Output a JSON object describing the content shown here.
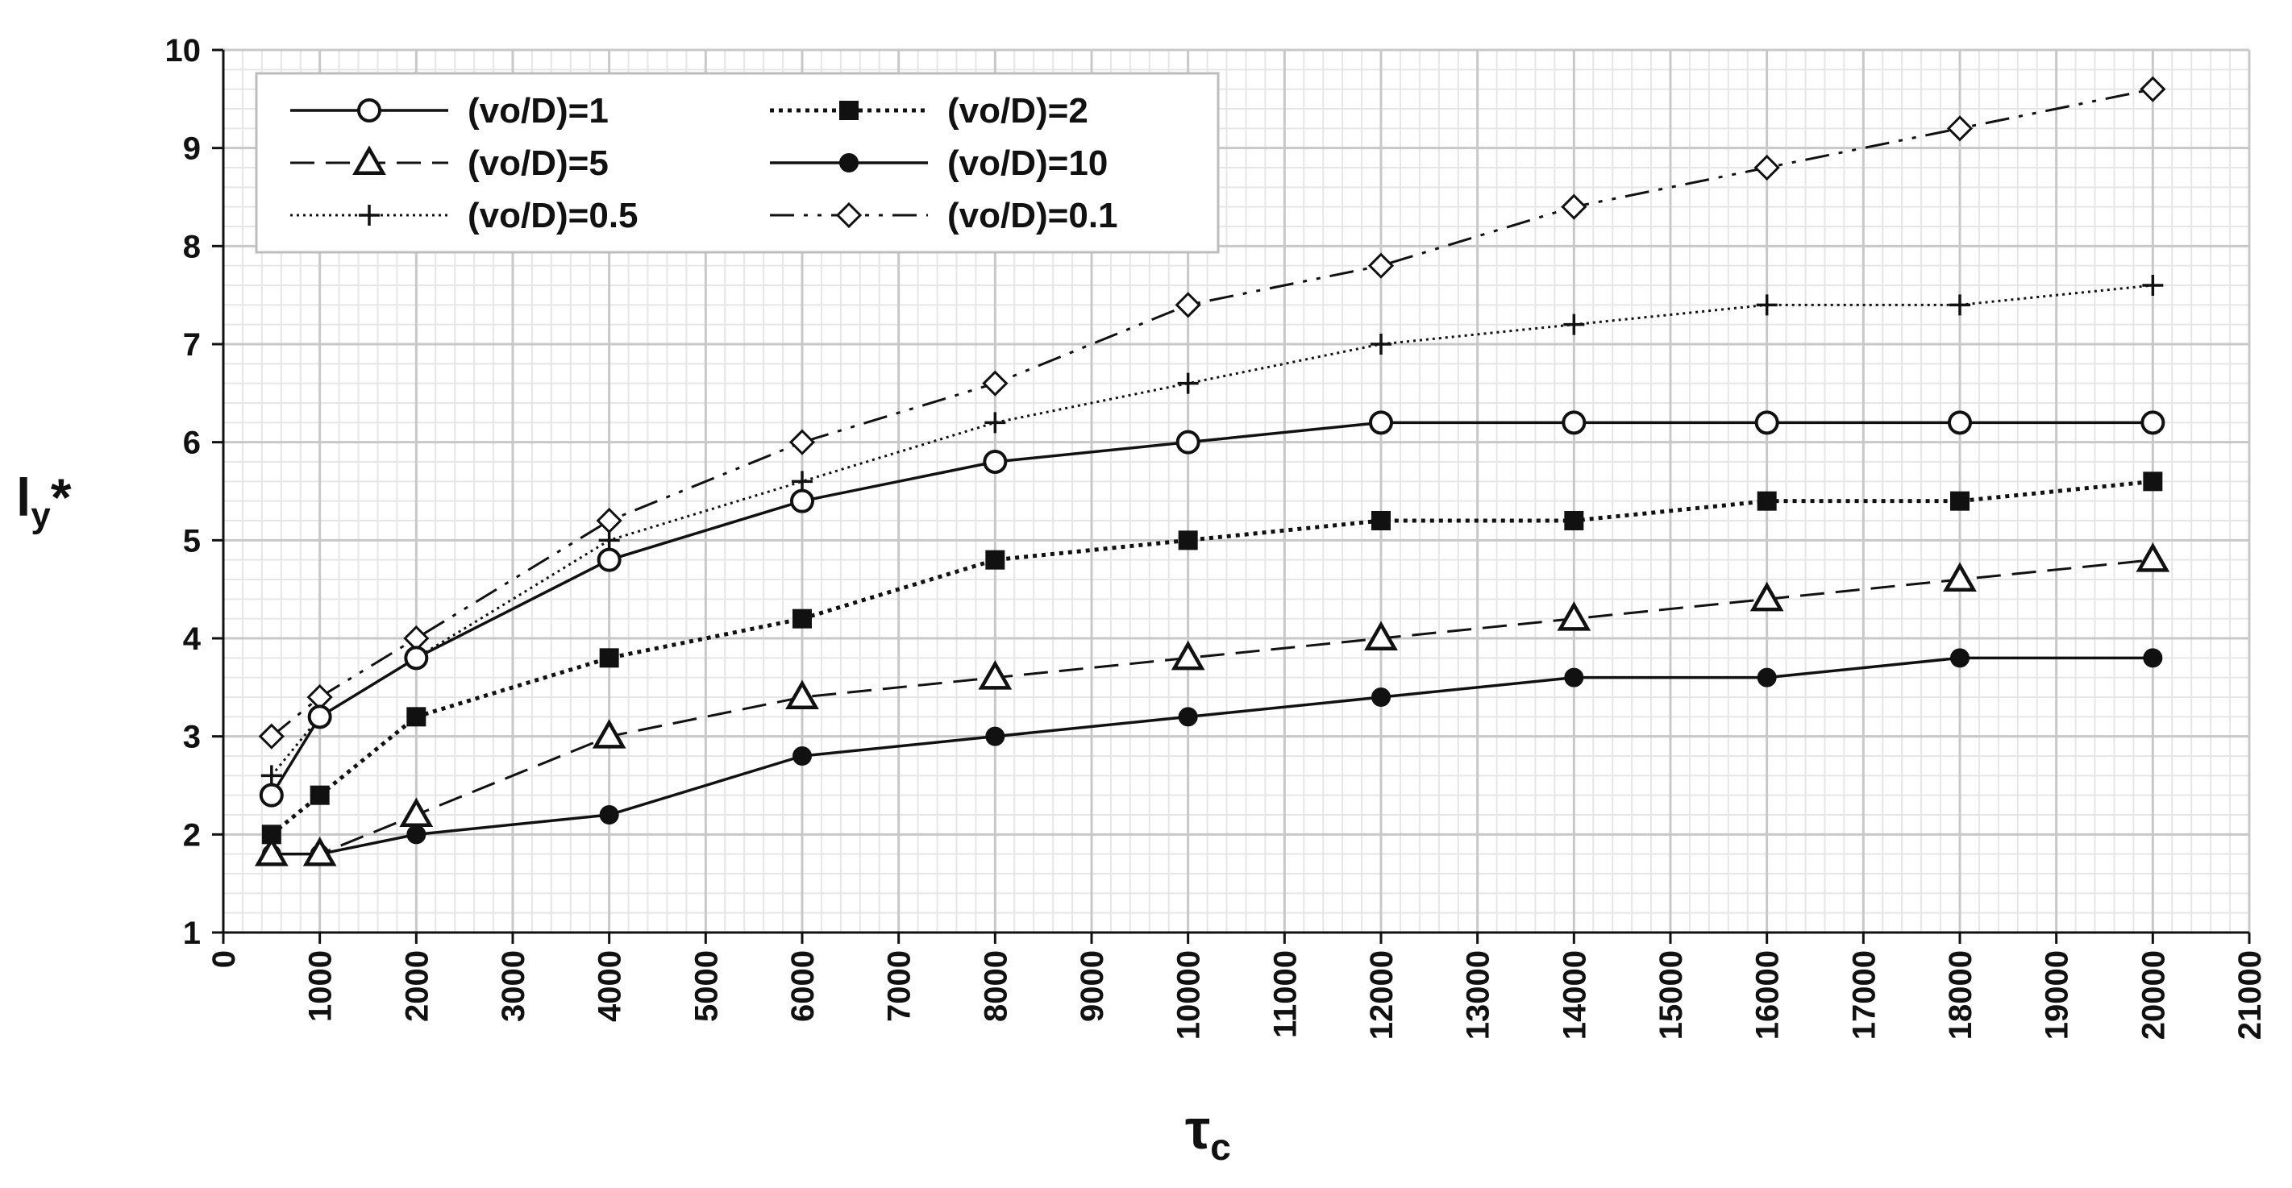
{
  "chart_data": {
    "type": "line",
    "title": "",
    "xlabel": {
      "main": "τ",
      "sub": "c"
    },
    "ylabel": {
      "main": "l",
      "sub": "y",
      "sup": "*"
    },
    "xlim": [
      0,
      21000
    ],
    "ylim": [
      1,
      10
    ],
    "x_major_step": 1000,
    "y_major_step": 1,
    "x_minor_step": 200,
    "y_minor_step": 0.2,
    "grid": true,
    "legend_position": "top-left",
    "series": [
      {
        "name": "(vo/D)=1",
        "line": "solid",
        "marker": "open-circle",
        "x": [
          500,
          1000,
          2000,
          4000,
          6000,
          8000,
          10000,
          12000,
          14000,
          16000,
          18000,
          20000
        ],
        "values": [
          2.4,
          3.2,
          3.8,
          4.8,
          5.4,
          5.8,
          6.0,
          6.2,
          6.2,
          6.2,
          6.2,
          6.2
        ]
      },
      {
        "name": "(vo/D)=2",
        "line": "dotted",
        "marker": "filled-square",
        "x": [
          500,
          1000,
          2000,
          4000,
          6000,
          8000,
          10000,
          12000,
          14000,
          16000,
          18000,
          20000
        ],
        "values": [
          2.0,
          2.4,
          3.2,
          3.8,
          4.2,
          4.8,
          5.0,
          5.2,
          5.2,
          5.4,
          5.4,
          5.6
        ]
      },
      {
        "name": "(vo/D)=5",
        "line": "dashed",
        "marker": "open-triangle",
        "x": [
          500,
          1000,
          2000,
          4000,
          6000,
          8000,
          10000,
          12000,
          14000,
          16000,
          18000,
          20000
        ],
        "values": [
          1.8,
          1.8,
          2.2,
          3.0,
          3.4,
          3.6,
          3.8,
          4.0,
          4.2,
          4.4,
          4.6,
          4.8
        ]
      },
      {
        "name": "(vo/D)=10",
        "line": "solid",
        "marker": "filled-circle",
        "x": [
          500,
          1000,
          2000,
          4000,
          6000,
          8000,
          10000,
          12000,
          14000,
          16000,
          18000,
          20000
        ],
        "values": [
          1.8,
          1.8,
          2.0,
          2.2,
          2.8,
          3.0,
          3.2,
          3.4,
          3.6,
          3.6,
          3.8,
          3.8
        ]
      },
      {
        "name": "(vo/D)=0.5",
        "line": "fine-dotted",
        "marker": "plus",
        "x": [
          500,
          1000,
          2000,
          4000,
          6000,
          8000,
          10000,
          12000,
          14000,
          16000,
          18000,
          20000
        ],
        "values": [
          2.6,
          3.2,
          3.8,
          5.0,
          5.6,
          6.2,
          6.6,
          7.0,
          7.2,
          7.4,
          7.4,
          7.6
        ]
      },
      {
        "name": "(vo/D)=0.1",
        "line": "dash-dot-dot",
        "marker": "open-diamond",
        "x": [
          500,
          1000,
          2000,
          4000,
          6000,
          8000,
          10000,
          12000,
          14000,
          16000,
          18000,
          20000
        ],
        "values": [
          3.0,
          3.4,
          4.0,
          5.2,
          6.0,
          6.6,
          7.4,
          7.8,
          8.4,
          8.8,
          9.2,
          9.6
        ]
      }
    ]
  },
  "colors": {
    "ink": "#111111",
    "major_grid": "#c8c8c8",
    "minor_grid": "#e6e6e6",
    "background": "#ffffff"
  }
}
